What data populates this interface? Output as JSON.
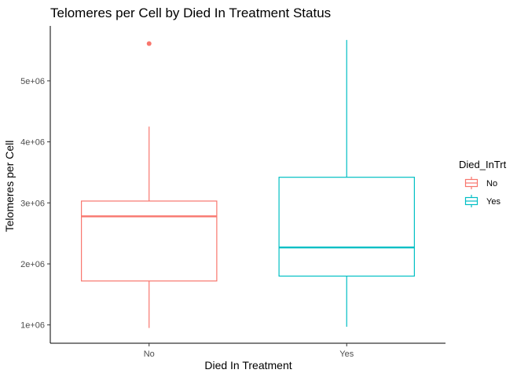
{
  "chart_data": {
    "type": "box",
    "title": "Telomeres per Cell by Died In Treatment Status",
    "xlabel": "Died In Treatment",
    "ylabel": "Telomeres per Cell",
    "categories": [
      "No",
      "Yes"
    ],
    "ylim": [
      700000,
      5900000
    ],
    "yticks": [
      1000000,
      2000000,
      3000000,
      4000000,
      5000000
    ],
    "ytick_labels": [
      "1e+06",
      "2e+06",
      "3e+06",
      "4e+06",
      "5e+06"
    ],
    "grid": false,
    "legend": {
      "title": "Died_InTrt",
      "position": "right",
      "entries": [
        "No",
        "Yes"
      ]
    },
    "series": [
      {
        "name": "No",
        "color": "#F8766D",
        "whisker_low": 950000,
        "q1": 1720000,
        "median": 2780000,
        "q3": 3030000,
        "whisker_high": 4250000,
        "outliers": [
          5610000
        ]
      },
      {
        "name": "Yes",
        "color": "#00BFC4",
        "whisker_low": 970000,
        "q1": 1800000,
        "median": 2270000,
        "q3": 3420000,
        "whisker_high": 5670000,
        "outliers": []
      }
    ]
  }
}
